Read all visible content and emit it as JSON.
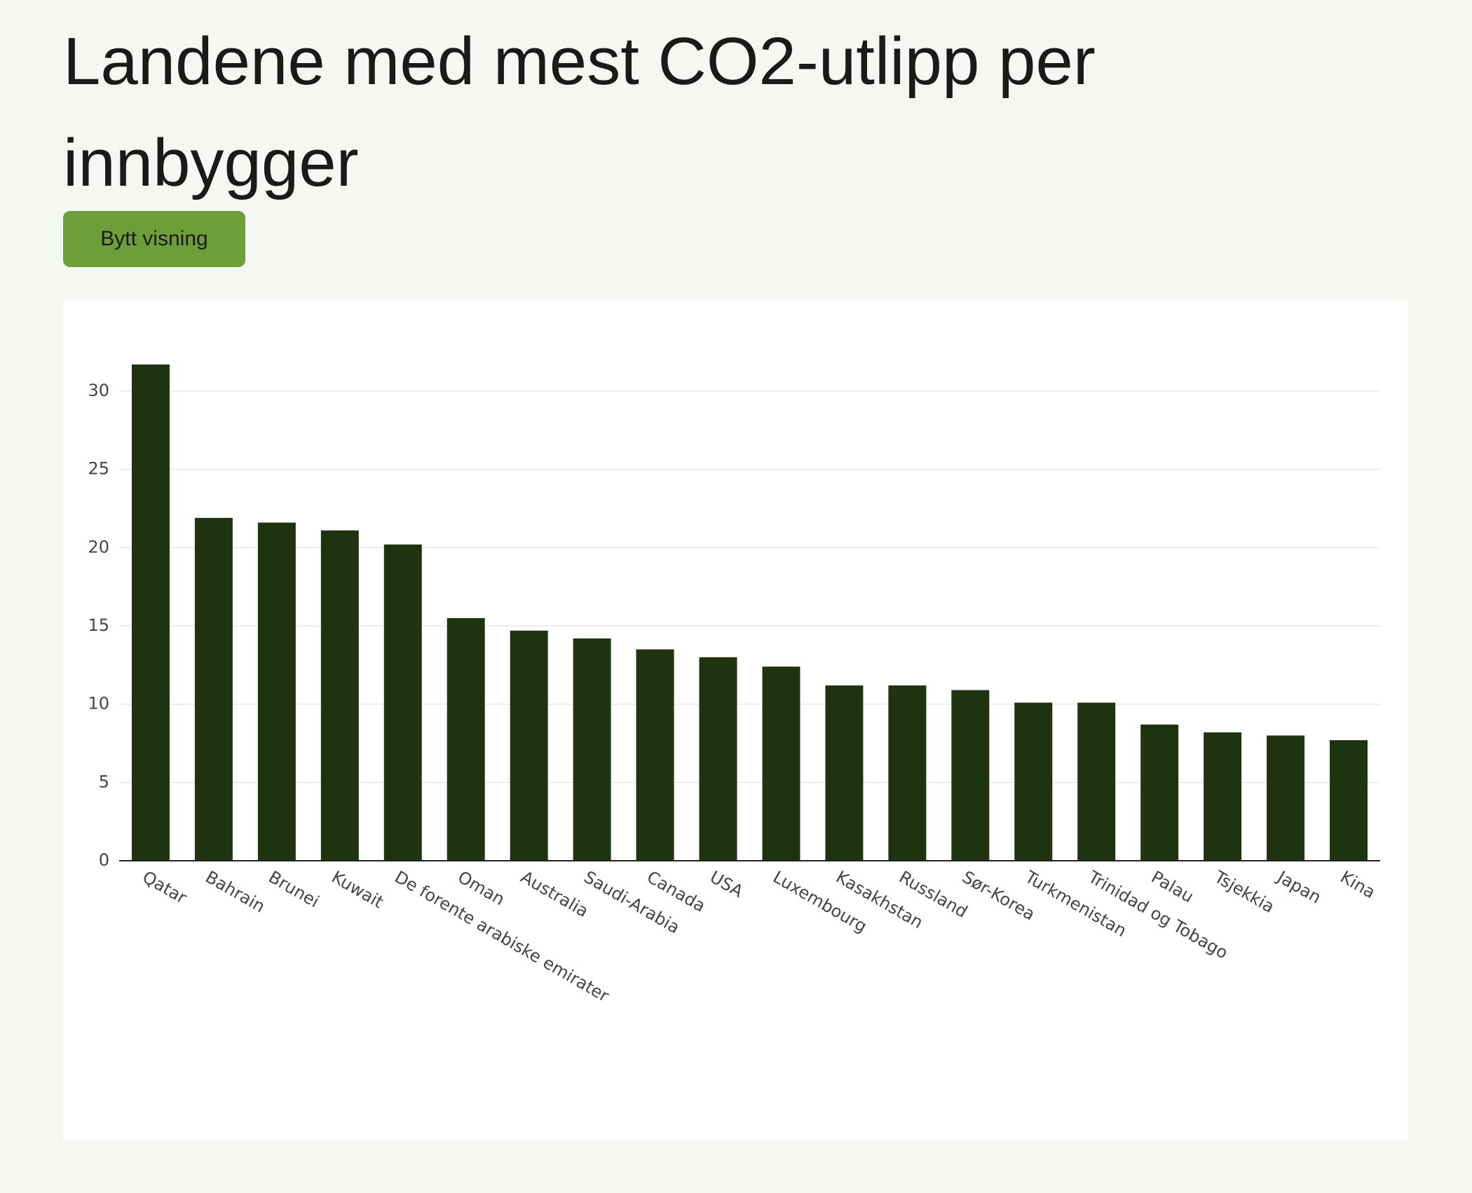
{
  "title": "Landene med mest CO2-utlipp per innbygger",
  "button": "Bytt visning",
  "chart_data": {
    "type": "bar",
    "categories": [
      "Qatar",
      "Bahrain",
      "Brunei",
      "Kuwait",
      "De forente arabiske emirater",
      "Oman",
      "Australia",
      "Saudi-Arabia",
      "Canada",
      "USA",
      "Luxembourg",
      "Kasakhstan",
      "Russland",
      "Sør-Korea",
      "Turkmenistan",
      "Trinidad og Tobago",
      "Palau",
      "Tsjekkia",
      "Japan",
      "Kina"
    ],
    "values": [
      31.7,
      21.9,
      21.6,
      21.1,
      20.2,
      15.5,
      14.7,
      14.2,
      13.5,
      13.0,
      12.4,
      11.2,
      11.2,
      10.9,
      10.1,
      10.1,
      8.7,
      8.2,
      8.0,
      7.7
    ],
    "color": "#1e3310",
    "ylim": [
      0,
      33.4
    ],
    "yticks": [
      0,
      5,
      10,
      15,
      20,
      25,
      30
    ],
    "grid": true
  }
}
